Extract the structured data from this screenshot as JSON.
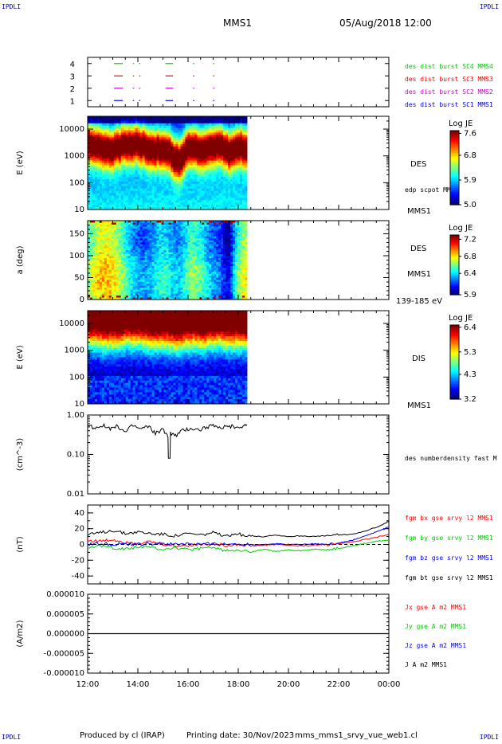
{
  "header": {
    "corner_left_top": "IPDLI",
    "corner_right_top": "IPDLI",
    "corner_left_bottom": "IPDLI",
    "corner_right_bottom": "IPDLI",
    "mission": "MMS1",
    "datetime": "05/Aug/2018 12:00"
  },
  "footer": {
    "produced": "Produced by cl (IRAP)",
    "printing": "Printing date: 30/Nov/2023",
    "file": "mms_mms1_srvy_vue_web1.cl"
  },
  "colors": {
    "red": "#ff0000",
    "green": "#00cc00",
    "blue": "#0000ff",
    "magenta": "#cc00cc",
    "black": "#000000"
  },
  "chart_data": [
    {
      "type": "scatter",
      "panel": "burst availability",
      "ylim": [
        0.5,
        4.5
      ],
      "yticks": [
        "1",
        "2",
        "3",
        "4"
      ],
      "legend": [
        {
          "name": "des dist burst SC1 MMS1",
          "color": "#0000ff"
        },
        {
          "name": "des dist burst SC2 MMS2",
          "color": "#cc00cc"
        },
        {
          "name": "des dist burst SC3 MMS3",
          "color": "#ff0000"
        },
        {
          "name": "des dist burst SC4 MMS4",
          "color": "#00cc00"
        }
      ],
      "intervals_hours": [
        [
          13.05,
          13.4
        ],
        [
          13.8,
          13.85
        ],
        [
          14.05,
          14.1
        ],
        [
          15.1,
          15.4
        ],
        [
          16.2,
          16.25
        ],
        [
          17.0,
          17.05
        ]
      ]
    },
    {
      "type": "heatmap",
      "panel": "DES energy spectrogram",
      "ylabel": "E (eV)",
      "yscale": "log",
      "ylim": [
        10,
        30000
      ],
      "yticks": [
        "10",
        "100",
        "1000",
        "10000"
      ],
      "data_end_hour": 18.35,
      "label": "DES",
      "side_labels": [
        "edp scpot MMS1",
        "MMS1"
      ],
      "colorbar": {
        "title": "Log JE",
        "ticks": [
          "7.6",
          "6.8",
          "5.9",
          "5.0"
        ],
        "range": [
          5.0,
          7.7
        ]
      }
    },
    {
      "type": "heatmap",
      "panel": "DES pitch angle",
      "ylabel": "a (deg)",
      "ylim": [
        0,
        180
      ],
      "yticks": [
        "0",
        "50",
        "100",
        "150"
      ],
      "data_end_hour": 18.35,
      "label": "DES",
      "side_labels": [
        "MMS1",
        "139-185 eV"
      ],
      "colorbar": {
        "title": "Log JE",
        "ticks": [
          "7.2",
          "6.8",
          "6.4",
          "5.9"
        ],
        "range": [
          5.9,
          7.3
        ]
      }
    },
    {
      "type": "heatmap",
      "panel": "DIS energy spectrogram",
      "ylabel": "E (eV)",
      "yscale": "log",
      "ylim": [
        10,
        30000
      ],
      "yticks": [
        "10",
        "100",
        "1000",
        "10000"
      ],
      "data_end_hour": 18.35,
      "label": "DIS",
      "side_labels": [
        "MMS1"
      ],
      "colorbar": {
        "title": "Log JE",
        "ticks": [
          "6.4",
          "5.3",
          "4.3",
          "3.2"
        ],
        "range": [
          3.2,
          6.5
        ]
      }
    },
    {
      "type": "line",
      "panel": "density",
      "ylabel": "(cm^-3)",
      "yscale": "log",
      "ylim": [
        0.01,
        1.0
      ],
      "yticks": [
        "0.01",
        "0.10",
        "1.00"
      ],
      "series": [
        {
          "name": "des numberdensity fast M",
          "color": "#000000",
          "x": [
            12.0,
            12.3,
            12.6,
            12.9,
            13.2,
            13.5,
            13.8,
            14.1,
            14.4,
            14.7,
            15.0,
            15.2,
            15.3,
            15.5,
            15.8,
            16.1,
            16.4,
            16.7,
            17.0,
            17.3,
            17.6,
            17.9,
            18.2,
            18.35
          ],
          "y": [
            0.55,
            0.48,
            0.56,
            0.42,
            0.53,
            0.36,
            0.55,
            0.44,
            0.52,
            0.35,
            0.42,
            0.27,
            0.35,
            0.3,
            0.41,
            0.47,
            0.42,
            0.49,
            0.52,
            0.45,
            0.53,
            0.49,
            0.55,
            0.57
          ]
        }
      ]
    },
    {
      "type": "line",
      "panel": "magnetic field",
      "ylabel": "(nT)",
      "ylim": [
        -50,
        50
      ],
      "yticks": [
        "-40",
        "-20",
        "0",
        "20",
        "40"
      ],
      "x": [
        12,
        12.5,
        13,
        13.5,
        14,
        14.5,
        15,
        15.5,
        16,
        16.5,
        17,
        17.5,
        18,
        18.5,
        19,
        19.5,
        20,
        20.5,
        21,
        21.5,
        22,
        22.5,
        23,
        23.5,
        24
      ],
      "series": [
        {
          "name": "fgm bx gse srvy l2 MMS1",
          "color": "#ff0000",
          "y": [
            5,
            4,
            6,
            3,
            2,
            3,
            0,
            -2,
            -1,
            0,
            1,
            -1,
            0,
            -2,
            -1,
            0,
            -1,
            -2,
            -1,
            0,
            1,
            3,
            6,
            9,
            13
          ]
        },
        {
          "name": "fgm by gse srvy l2 MMS1",
          "color": "#00cc00",
          "y": [
            -3,
            -2,
            -4,
            -6,
            -3,
            -4,
            -6,
            -4,
            -7,
            -5,
            -4,
            -8,
            -6,
            -10,
            -6,
            -9,
            -7,
            -8,
            -6,
            -7,
            -5,
            -2,
            1,
            4,
            6
          ]
        },
        {
          "name": "fgm bz gse srvy l2 MMS1",
          "color": "#0000ff",
          "y": [
            0,
            1,
            0,
            1,
            0,
            1,
            1,
            0,
            1,
            0,
            1,
            0,
            1,
            0,
            0,
            1,
            0,
            0,
            1,
            0,
            2,
            5,
            10,
            16,
            22
          ]
        },
        {
          "name": "fgm bt gse srvy l2 MMS1",
          "color": "#000000",
          "y": [
            12,
            15,
            18,
            14,
            16,
            14,
            13,
            11,
            14,
            12,
            15,
            10,
            13,
            11,
            10,
            12,
            10,
            11,
            10,
            11,
            12,
            13,
            16,
            22,
            29
          ]
        }
      ]
    },
    {
      "type": "line",
      "panel": "current density",
      "ylabel": "(A/m2)",
      "ylim": [
        -1e-05,
        1e-05
      ],
      "yticks": [
        "-0.000010",
        "-0.000005",
        "0.000000",
        "0.000005",
        "0.000010"
      ],
      "series": [
        {
          "name": "Jx gse A m2 MMS1",
          "color": "#ff0000"
        },
        {
          "name": "Jy gse A m2 MMS1",
          "color": "#00cc00"
        },
        {
          "name": "Jz gse A m2 MMS1",
          "color": "#0000ff"
        },
        {
          "name": "J A m2 MMS1",
          "color": "#000000"
        }
      ],
      "x": [
        12,
        13,
        14,
        15,
        16,
        17,
        18,
        19,
        20,
        21,
        22,
        23,
        24
      ],
      "y": [
        0,
        0,
        0,
        0,
        0,
        0,
        0,
        0,
        0,
        0,
        0,
        0,
        0
      ]
    }
  ],
  "xaxis": {
    "ticks": [
      "12:00",
      "14:00",
      "16:00",
      "18:00",
      "20:00",
      "22:00",
      "00:00"
    ],
    "range_hours": [
      12,
      24
    ]
  }
}
